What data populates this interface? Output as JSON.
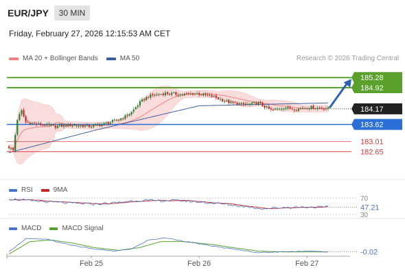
{
  "header": {
    "symbol": "EUR/JPY",
    "timeframe": "30 MIN",
    "datetime": "Friday, February 27, 2026 12:15:53 AM CET",
    "credit": "Research © 2026 Trading Central"
  },
  "legend": {
    "ma20": "MA 20 + Bollinger Bands",
    "ma50": "MA 50",
    "ma20_color": "#f08080",
    "ma50_color": "#3a5fa0"
  },
  "colors": {
    "bull": "#2e7d32",
    "bear": "#c62828",
    "target": "#5aa02c",
    "pivot": "#2b6fd6",
    "current": "#222222",
    "support": "#d93a3a",
    "arrow": "#2b62b5",
    "band_fill": "#f9d6d6"
  },
  "chart_data": {
    "type": "candlestick",
    "symbol": "EUR/JPY",
    "timeframe": "30 MIN",
    "x_tick_labels": [
      "Feb 25",
      "Feb 26",
      "Feb 27"
    ],
    "price_range": [
      182.3,
      185.6
    ],
    "levels": [
      {
        "value": 185.28,
        "label": "185.28",
        "role": "target"
      },
      {
        "value": 184.92,
        "label": "184.92",
        "role": "target"
      },
      {
        "value": 184.17,
        "label": "184.17",
        "role": "current"
      },
      {
        "value": 183.62,
        "label": "183.62",
        "role": "pivot"
      },
      {
        "value": 183.01,
        "label": "183.01",
        "role": "support"
      },
      {
        "value": 182.65,
        "label": "182.65",
        "role": "support"
      }
    ],
    "candle_anchors": [
      [
        0,
        182.82
      ],
      [
        2,
        182.7
      ],
      [
        4,
        183.8
      ],
      [
        6,
        184.1
      ],
      [
        8,
        183.7
      ],
      [
        14,
        183.62
      ],
      [
        22,
        183.55
      ],
      [
        30,
        183.6
      ],
      [
        38,
        183.55
      ],
      [
        44,
        183.62
      ],
      [
        48,
        183.7
      ],
      [
        54,
        183.85
      ],
      [
        58,
        184.05
      ],
      [
        62,
        184.4
      ],
      [
        66,
        184.62
      ],
      [
        74,
        184.72
      ],
      [
        82,
        184.68
      ],
      [
        88,
        184.72
      ],
      [
        96,
        184.62
      ],
      [
        104,
        184.4
      ],
      [
        112,
        184.32
      ],
      [
        118,
        184.38
      ],
      [
        124,
        184.12
      ],
      [
        130,
        184.22
      ],
      [
        136,
        184.16
      ],
      [
        142,
        184.23
      ],
      [
        146,
        184.2
      ],
      [
        151,
        184.18
      ]
    ],
    "ma50_anchors": [
      [
        0,
        182.62
      ],
      [
        40,
        183.4
      ],
      [
        90,
        184.28
      ],
      [
        151,
        184.38
      ]
    ],
    "rsi": {
      "label": "RSI",
      "ma_label": "9MA",
      "levels": [
        70,
        30
      ],
      "last": 47.21,
      "last_label": "47.21",
      "level_labels": [
        "70",
        "30"
      ],
      "anchors": [
        [
          0,
          68
        ],
        [
          10,
          63
        ],
        [
          20,
          60
        ],
        [
          30,
          57
        ],
        [
          40,
          55
        ],
        [
          50,
          58
        ],
        [
          60,
          64
        ],
        [
          70,
          63
        ],
        [
          80,
          64
        ],
        [
          90,
          60
        ],
        [
          100,
          56
        ],
        [
          110,
          50
        ],
        [
          120,
          44
        ],
        [
          130,
          47
        ],
        [
          140,
          48
        ],
        [
          151,
          47.21
        ]
      ],
      "series_colors": {
        "rsi": "#4a74c9",
        "ma": "#c62828"
      }
    },
    "macd": {
      "label": "MACD",
      "signal_label": "MACD Signal",
      "last": -0.02,
      "last_label": "-0.02",
      "macd_anchors": [
        [
          0,
          -0.02
        ],
        [
          8,
          0.16
        ],
        [
          18,
          0.15
        ],
        [
          28,
          0.08
        ],
        [
          40,
          0.02
        ],
        [
          50,
          -0.01
        ],
        [
          58,
          0.02
        ],
        [
          66,
          0.14
        ],
        [
          74,
          0.17
        ],
        [
          84,
          0.12
        ],
        [
          96,
          0.06
        ],
        [
          108,
          0.01
        ],
        [
          118,
          -0.03
        ],
        [
          128,
          -0.02
        ],
        [
          140,
          -0.01
        ],
        [
          151,
          -0.02
        ]
      ],
      "signal_anchors": [
        [
          0,
          -0.05
        ],
        [
          10,
          0.12
        ],
        [
          20,
          0.14
        ],
        [
          30,
          0.1
        ],
        [
          40,
          0.04
        ],
        [
          52,
          0.0
        ],
        [
          62,
          0.04
        ],
        [
          72,
          0.12
        ],
        [
          82,
          0.12
        ],
        [
          96,
          0.08
        ],
        [
          108,
          0.03
        ],
        [
          118,
          -0.01
        ],
        [
          130,
          -0.02
        ],
        [
          151,
          -0.02
        ]
      ],
      "series_colors": {
        "macd": "#4a74c9",
        "signal": "#5aa02c"
      }
    }
  }
}
